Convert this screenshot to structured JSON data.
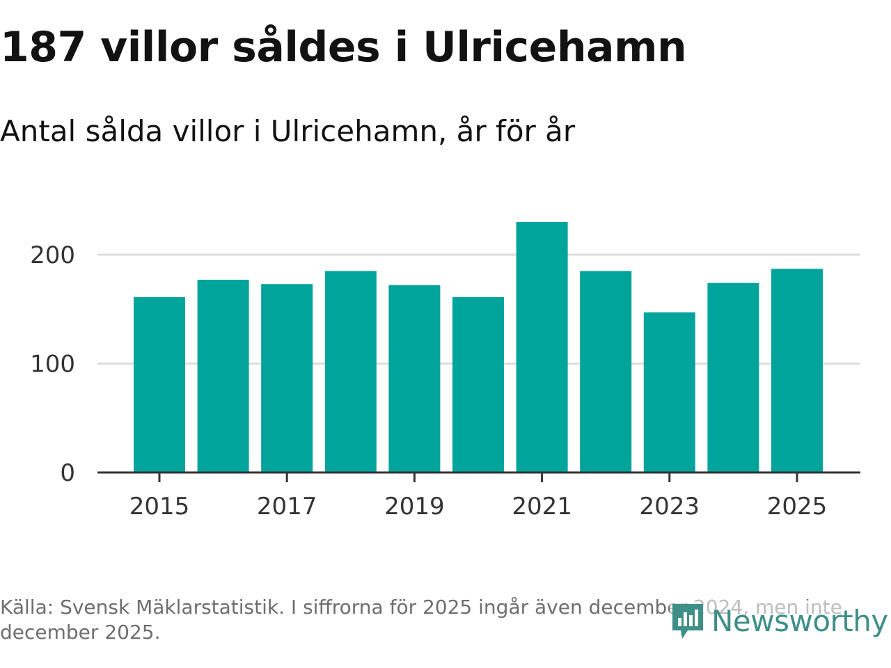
{
  "header": {
    "title": "187 villor såldes i Ulricehamn",
    "subtitle": "Antal sålda villor i Ulricehamn, år för år"
  },
  "footer": {
    "source": "Källa: Svensk Mäklarstatistik. I siffrorna för 2025 ingår även december 2024, men inte december 2025.",
    "logo_text": "Newsworthy",
    "logo_icon": "newsworthy-logo-icon"
  },
  "colors": {
    "bar": "#00a49b",
    "grid": "#dddddd",
    "axis": "#333333",
    "logo": "#3d8f88"
  },
  "chart_data": {
    "type": "bar",
    "title": "187 villor såldes i Ulricehamn",
    "subtitle": "Antal sålda villor i Ulricehamn, år för år",
    "xlabel": "",
    "ylabel": "",
    "categories": [
      "2015",
      "2016",
      "2017",
      "2018",
      "2019",
      "2020",
      "2021",
      "2022",
      "2023",
      "2024",
      "2025"
    ],
    "values": [
      161,
      177,
      173,
      185,
      172,
      161,
      230,
      185,
      147,
      174,
      187
    ],
    "x_tick_labels": [
      "2015",
      "2017",
      "2019",
      "2021",
      "2023",
      "2025"
    ],
    "y_ticks": [
      0,
      100,
      200
    ],
    "ylim": [
      0,
      250
    ],
    "grid": true
  }
}
